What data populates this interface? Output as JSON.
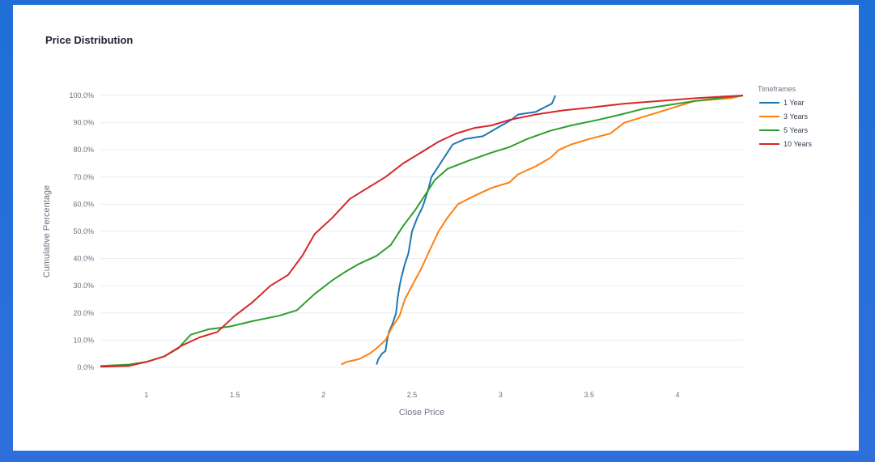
{
  "chart_data": {
    "type": "line",
    "title": "Price Distribution",
    "xlabel": "Close Price",
    "ylabel": "Cumulative Percentage",
    "xlim": [
      0.74,
      4.37
    ],
    "ylim": [
      0,
      100
    ],
    "x_ticks": [
      1,
      1.5,
      2,
      2.5,
      3,
      3.5,
      4
    ],
    "x_tick_labels": [
      "1",
      "1.5",
      "2",
      "2.5",
      "3",
      "3.5",
      "4"
    ],
    "y_ticks": [
      0,
      10,
      20,
      30,
      40,
      50,
      60,
      70,
      80,
      90,
      100
    ],
    "y_tick_labels": [
      "0.0%",
      "10.0%",
      "20.0%",
      "30.0%",
      "40.0%",
      "50.0%",
      "60.0%",
      "70.0%",
      "80.0%",
      "90.0%",
      "100.0%"
    ],
    "grid": "horizontal",
    "legend": {
      "title": "Timeframes",
      "placement": "top-right"
    },
    "series": [
      {
        "name": "1 Year",
        "color": "#1f77b4",
        "points": [
          [
            2.3,
            1
          ],
          [
            2.31,
            3
          ],
          [
            2.33,
            5
          ],
          [
            2.35,
            6
          ],
          [
            2.36,
            10
          ],
          [
            2.37,
            13
          ],
          [
            2.39,
            16
          ],
          [
            2.41,
            20
          ],
          [
            2.42,
            26
          ],
          [
            2.43,
            30
          ],
          [
            2.44,
            33
          ],
          [
            2.46,
            38
          ],
          [
            2.48,
            42
          ],
          [
            2.5,
            50
          ],
          [
            2.53,
            55
          ],
          [
            2.56,
            59
          ],
          [
            2.59,
            65
          ],
          [
            2.61,
            70
          ],
          [
            2.65,
            74
          ],
          [
            2.69,
            78
          ],
          [
            2.73,
            82
          ],
          [
            2.8,
            84
          ],
          [
            2.9,
            85
          ],
          [
            2.98,
            88
          ],
          [
            3.06,
            91
          ],
          [
            3.1,
            93
          ],
          [
            3.2,
            94
          ],
          [
            3.26,
            96
          ],
          [
            3.29,
            97
          ],
          [
            3.31,
            100
          ]
        ]
      },
      {
        "name": "3 Years",
        "color": "#ff7f0e",
        "points": [
          [
            2.1,
            1
          ],
          [
            2.13,
            2
          ],
          [
            2.2,
            3
          ],
          [
            2.26,
            5
          ],
          [
            2.3,
            7
          ],
          [
            2.35,
            10
          ],
          [
            2.39,
            15
          ],
          [
            2.43,
            19
          ],
          [
            2.46,
            25
          ],
          [
            2.5,
            30
          ],
          [
            2.55,
            36
          ],
          [
            2.6,
            43
          ],
          [
            2.65,
            50
          ],
          [
            2.7,
            55
          ],
          [
            2.76,
            60
          ],
          [
            2.85,
            63
          ],
          [
            2.95,
            66
          ],
          [
            3.05,
            68
          ],
          [
            3.1,
            71
          ],
          [
            3.2,
            74
          ],
          [
            3.28,
            77
          ],
          [
            3.33,
            80
          ],
          [
            3.4,
            82
          ],
          [
            3.5,
            84
          ],
          [
            3.62,
            86
          ],
          [
            3.7,
            90
          ],
          [
            3.8,
            92
          ],
          [
            3.9,
            94
          ],
          [
            4.0,
            96
          ],
          [
            4.1,
            98
          ],
          [
            4.3,
            99
          ],
          [
            4.37,
            100
          ]
        ]
      },
      {
        "name": "5 Years",
        "color": "#2ca02c",
        "points": [
          [
            0.74,
            0.5
          ],
          [
            0.9,
            1
          ],
          [
            1.0,
            2
          ],
          [
            1.1,
            4
          ],
          [
            1.18,
            7
          ],
          [
            1.25,
            12
          ],
          [
            1.35,
            14
          ],
          [
            1.47,
            15
          ],
          [
            1.6,
            17
          ],
          [
            1.75,
            19
          ],
          [
            1.85,
            21
          ],
          [
            1.95,
            27
          ],
          [
            2.05,
            32
          ],
          [
            2.12,
            35
          ],
          [
            2.2,
            38
          ],
          [
            2.3,
            41
          ],
          [
            2.38,
            45
          ],
          [
            2.45,
            52
          ],
          [
            2.52,
            58
          ],
          [
            2.58,
            64
          ],
          [
            2.63,
            69
          ],
          [
            2.7,
            73
          ],
          [
            2.82,
            76
          ],
          [
            2.95,
            79
          ],
          [
            3.05,
            81
          ],
          [
            3.15,
            84
          ],
          [
            3.28,
            87
          ],
          [
            3.4,
            89
          ],
          [
            3.55,
            91
          ],
          [
            3.68,
            93
          ],
          [
            3.8,
            95
          ],
          [
            3.95,
            96.5
          ],
          [
            4.1,
            98
          ],
          [
            4.3,
            99.5
          ],
          [
            4.37,
            100
          ]
        ]
      },
      {
        "name": "10 Years",
        "color": "#d62728",
        "points": [
          [
            0.74,
            0.2
          ],
          [
            0.9,
            0.5
          ],
          [
            1.0,
            2
          ],
          [
            1.1,
            4
          ],
          [
            1.2,
            8
          ],
          [
            1.3,
            11
          ],
          [
            1.4,
            13
          ],
          [
            1.5,
            19
          ],
          [
            1.6,
            24
          ],
          [
            1.7,
            30
          ],
          [
            1.8,
            34
          ],
          [
            1.88,
            41
          ],
          [
            1.95,
            49
          ],
          [
            2.05,
            55
          ],
          [
            2.15,
            62
          ],
          [
            2.25,
            66
          ],
          [
            2.35,
            70
          ],
          [
            2.45,
            75
          ],
          [
            2.55,
            79
          ],
          [
            2.65,
            83
          ],
          [
            2.75,
            86
          ],
          [
            2.85,
            88
          ],
          [
            2.95,
            89
          ],
          [
            3.05,
            91
          ],
          [
            3.2,
            93
          ],
          [
            3.35,
            94.5
          ],
          [
            3.5,
            95.5
          ],
          [
            3.7,
            97
          ],
          [
            3.9,
            98
          ],
          [
            4.1,
            99
          ],
          [
            4.37,
            100
          ]
        ]
      }
    ]
  }
}
